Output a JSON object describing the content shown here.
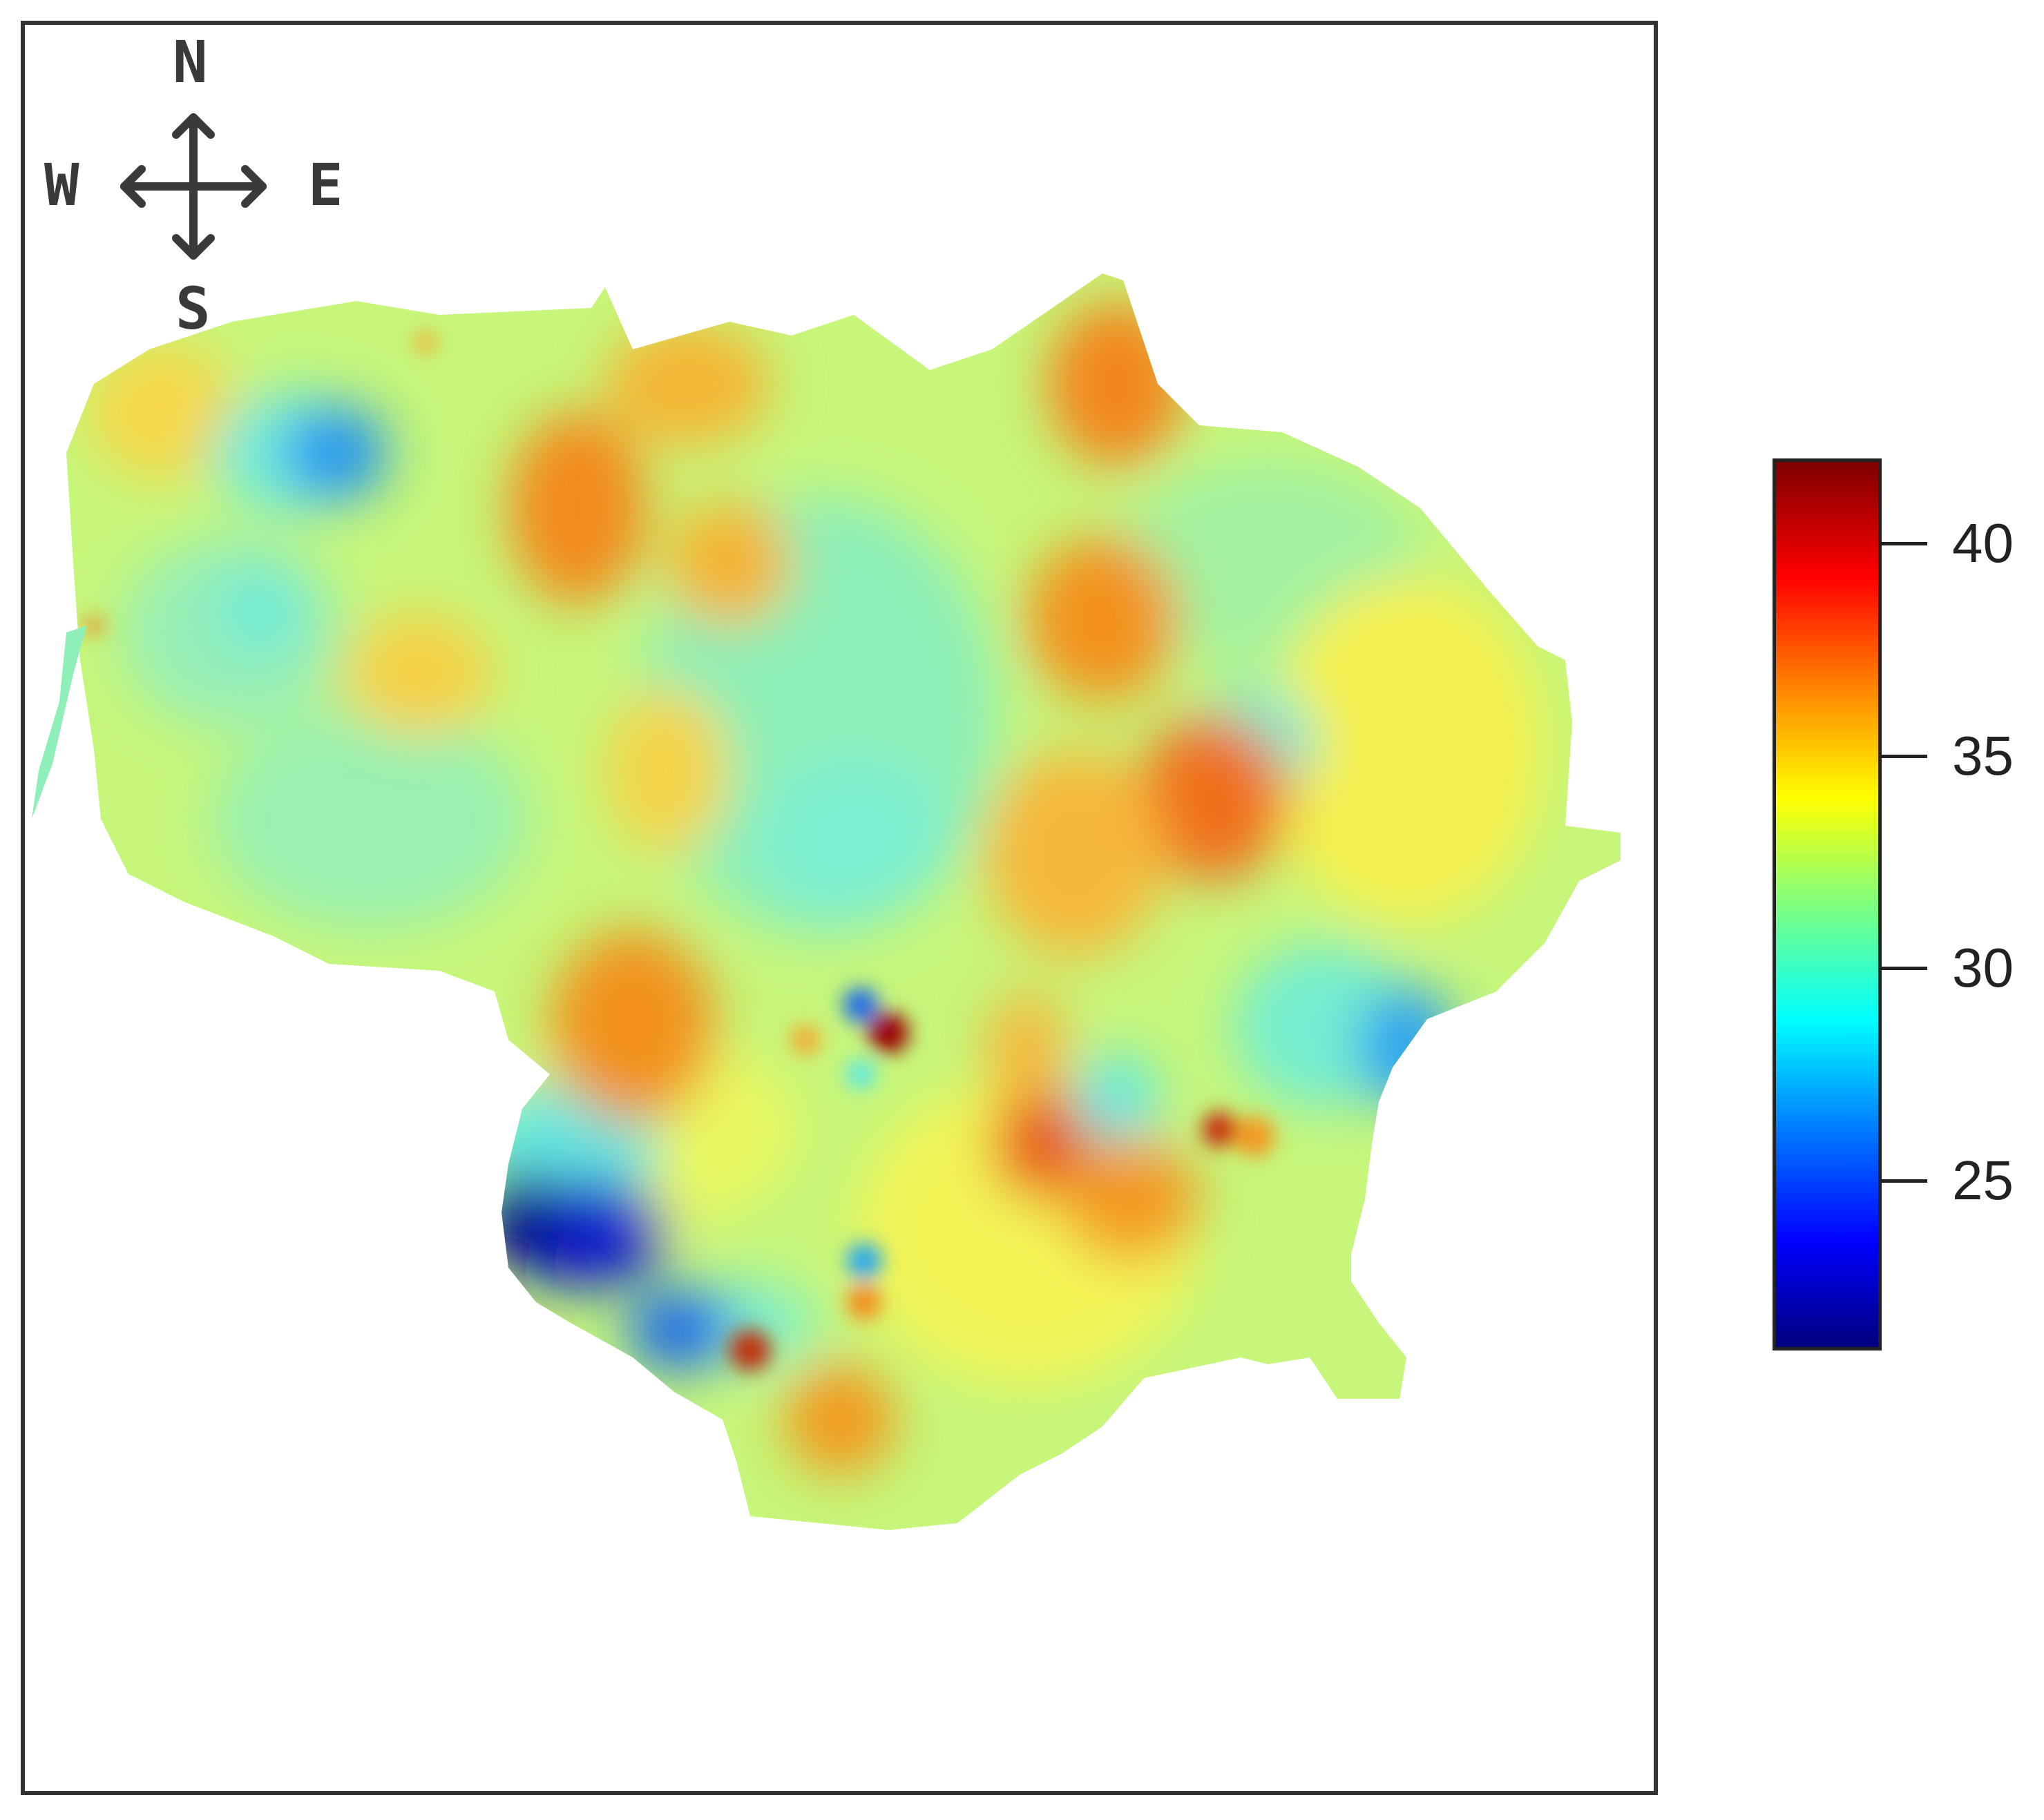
{
  "compass": {
    "north": "N",
    "south": "S",
    "east": "E",
    "west": "W"
  },
  "legend": {
    "ticks": [
      "25",
      "30",
      "35",
      "40"
    ],
    "tick_values": [
      25,
      30,
      35,
      40
    ],
    "range": [
      21,
      42
    ]
  },
  "colors": {
    "frame": "#333333",
    "low": "#00007f",
    "mid": "#7fff7f",
    "high": "#7f0000"
  }
}
